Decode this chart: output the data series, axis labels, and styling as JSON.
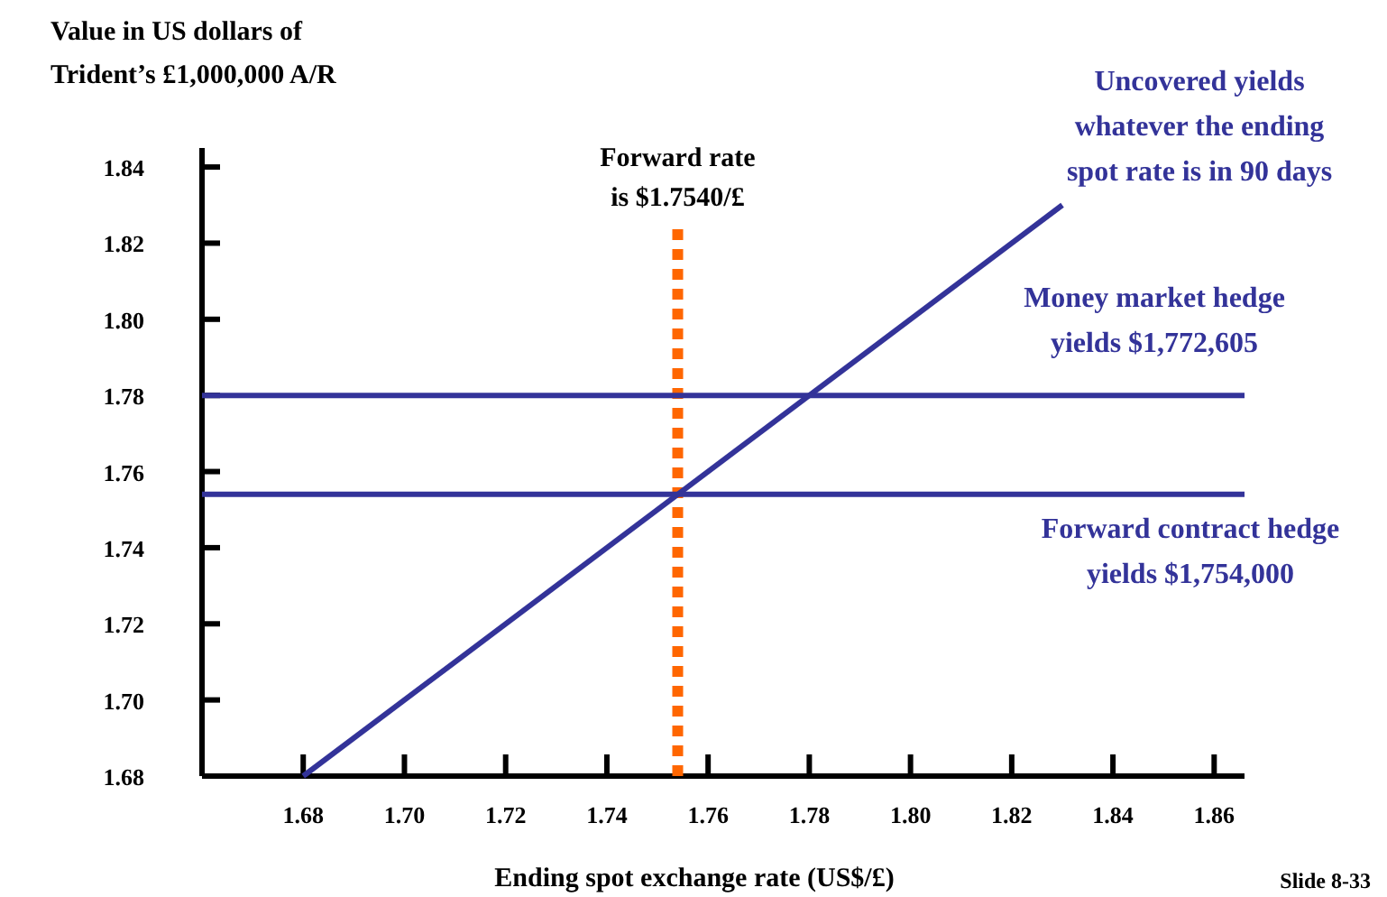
{
  "chart_data": {
    "type": "line",
    "ylabel": "Value in US dollars of\nTrident’s £1,000,000 A/R",
    "xlabel": "Ending spot exchange rate (US$/£)",
    "xlim": [
      1.66,
      1.866
    ],
    "ylim": [
      1.68,
      1.845
    ],
    "xticks": [
      {
        "value": 1.68,
        "label": "1.68"
      },
      {
        "value": 1.7,
        "label": "1.70"
      },
      {
        "value": 1.72,
        "label": "1.72"
      },
      {
        "value": 1.74,
        "label": "1.74"
      },
      {
        "value": 1.76,
        "label": "1.76"
      },
      {
        "value": 1.78,
        "label": "1.78"
      },
      {
        "value": 1.8,
        "label": "1.80"
      },
      {
        "value": 1.82,
        "label": "1.82"
      },
      {
        "value": 1.84,
        "label": "1.84"
      },
      {
        "value": 1.86,
        "label": "1.86"
      }
    ],
    "yticks": [
      {
        "value": 1.68,
        "label": "1.68"
      },
      {
        "value": 1.7,
        "label": "1.70"
      },
      {
        "value": 1.72,
        "label": "1.72"
      },
      {
        "value": 1.74,
        "label": "1.74"
      },
      {
        "value": 1.76,
        "label": "1.76"
      },
      {
        "value": 1.78,
        "label": "1.78"
      },
      {
        "value": 1.8,
        "label": "1.80"
      },
      {
        "value": 1.82,
        "label": "1.82"
      },
      {
        "value": 1.84,
        "label": "1.84"
      }
    ],
    "series": [
      {
        "name": "Uncovered yields\nwhatever the ending\nspot rate is in 90 days",
        "color": "#333399",
        "x": [
          1.68,
          1.83
        ],
        "values": [
          1.68,
          1.83
        ]
      },
      {
        "name": "Money market hedge\nyields $1,772,605",
        "color": "#333399",
        "x": [
          1.66,
          1.866
        ],
        "values": [
          1.78,
          1.78
        ]
      },
      {
        "name": "Forward contract hedge\nyields $1,754,000",
        "color": "#333399",
        "x": [
          1.66,
          1.866
        ],
        "values": [
          1.754,
          1.754
        ]
      }
    ],
    "ref_lines": [
      {
        "axis": "x",
        "value": 1.754,
        "label": "Forward rate\nis $1.7540/£",
        "color": "#ff6600",
        "line_style": "dotted"
      }
    ],
    "annotations": [
      "Slide 8-33"
    ],
    "grid": false,
    "legend": false,
    "marker": "none",
    "line_style": "solid"
  }
}
